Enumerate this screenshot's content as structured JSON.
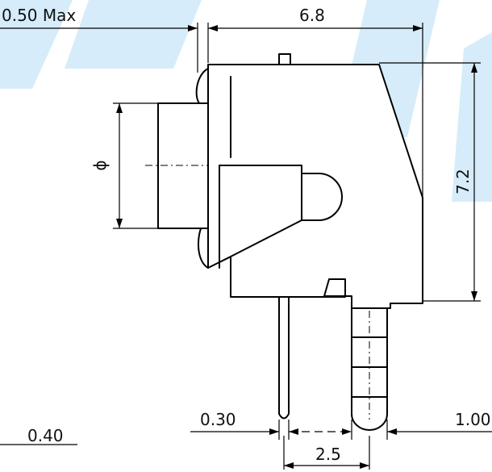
{
  "diagram": {
    "labels": {
      "max_gap": "0.50 Max",
      "width": "6.8",
      "height": "7.2",
      "diameter": "ϕ",
      "lead_thickness": "0.30",
      "pitch": "2.5",
      "right_lead": "1.00",
      "bottom_left": "0.40"
    },
    "colors": {
      "line": "#000000",
      "watermark": "#d6ecfa"
    }
  }
}
